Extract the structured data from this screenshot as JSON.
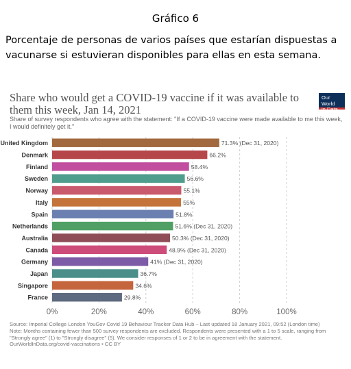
{
  "document": {
    "heading": "Gráfico 6",
    "caption": "Porcentaje de personas de varios países que estarían dispuestas a vacunarse si estuvieran disponibles para ellas en esta semana."
  },
  "logo": {
    "line1": "Our World",
    "line2": "in Data",
    "bg": "#0e2f5a",
    "accent": "#c33333"
  },
  "chart_data": {
    "type": "bar",
    "orientation": "horizontal",
    "title": "Share who would get a COVID-19 vaccine if it was available to them this week, Jan 14, 2021",
    "subtitle": "Share of survey respondents who agree with the statement: \"If a COVID-19 vaccine were made available to me this week, I would definitely get it.\"",
    "categories": [
      "United Kingdom",
      "Denmark",
      "Finland",
      "Sweden",
      "Norway",
      "Italy",
      "Spain",
      "Netherlands",
      "Australia",
      "Canada",
      "Germany",
      "Japan",
      "Singapore",
      "France"
    ],
    "values": [
      71.3,
      66.2,
      58.4,
      56.6,
      55.1,
      55,
      51.8,
      51.6,
      50.3,
      48.9,
      41,
      36.7,
      34.6,
      29.8
    ],
    "labels": [
      "71.3% (Dec 31, 2020)",
      "66.2%",
      "58.4%",
      "56.6%",
      "55.1%",
      "55%",
      "51.8%",
      "51.6% (Dec 31, 2020)",
      "50.3% (Dec 31, 2020)",
      "48.9% (Dec 31, 2020)",
      "41% (Dec 31, 2020)",
      "36.7%",
      "34.6%",
      "29.8%"
    ],
    "colors": [
      "#a2683e",
      "#b5474b",
      "#c14e9e",
      "#4f9d8c",
      "#c9596c",
      "#c4743a",
      "#6b80b0",
      "#50a065",
      "#8f4d58",
      "#cd4c7a",
      "#7d5ba6",
      "#4b8e8a",
      "#c4653e",
      "#5d6a80"
    ],
    "xticks": [
      "0%",
      "20%",
      "40%",
      "60%",
      "80%",
      "100%"
    ],
    "xlim": [
      0,
      100
    ],
    "grid": true
  },
  "footer": {
    "line1": "Source: Imperial College London YouGov Covid 19 Behaviour Tracker Data Hub – Last updated 18 January 2021, 09:52 (London time)",
    "line2": "Note: Months containing fewer than 500 survey respondents are excluded. Respondents were presented with a 1 to 5 scale, ranging from",
    "line3": "\"Strongly agree\" (1) to \"Strongly disagree\" (5). We consider responses of 1 or 2 to be in agreement with the statement.",
    "line4": "OurWorldInData.org/covid-vaccinations • CC BY"
  }
}
